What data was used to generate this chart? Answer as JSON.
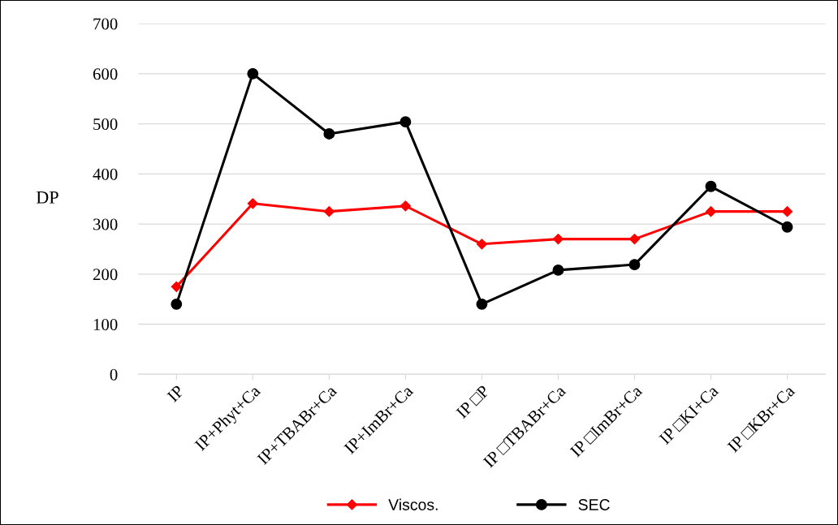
{
  "chart_data": {
    "type": "line",
    "ylabel": "DP",
    "categories": [
      "IP",
      "IP+Phyt+Ca",
      "IP+TBABr+Ca",
      "IP+ImBr+Ca",
      "IP □P",
      "IP □TBABr+Ca",
      "IP □ImBr+Ca",
      "IP □KI+Ca",
      "IP □KBr+Ca"
    ],
    "series": [
      {
        "name": "Viscos.",
        "color": "#ff0000",
        "marker": "diamond",
        "values": [
          175,
          341,
          325,
          336,
          260,
          270,
          270,
          325,
          325
        ]
      },
      {
        "name": "SEC",
        "color": "#000000",
        "marker": "circle",
        "values": [
          140,
          600,
          480,
          504,
          140,
          208,
          219,
          375,
          294
        ]
      }
    ],
    "ylim": [
      0,
      700
    ],
    "yticks": [
      0,
      100,
      200,
      300,
      400,
      500,
      600,
      700
    ],
    "grid": "y",
    "legend": "bottom",
    "line_style": "solid"
  }
}
